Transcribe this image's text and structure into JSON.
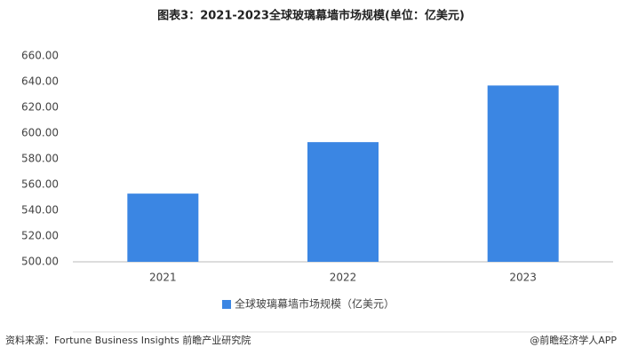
{
  "chart_data": {
    "type": "bar",
    "title": "图表3：2021-2023全球玻璃幕墙市场规模(单位：亿美元)",
    "categories": [
      "2021",
      "2022",
      "2023"
    ],
    "series": [
      {
        "name": "全球玻璃幕墙市场规模（亿美元）",
        "color": "#3b86e3",
        "values": [
          553,
          593,
          637
        ]
      }
    ],
    "ylim": [
      500,
      660
    ],
    "yticks": [
      {
        "value": 500,
        "label": "500.00"
      },
      {
        "value": 520,
        "label": "520.00"
      },
      {
        "value": 540,
        "label": "540.00"
      },
      {
        "value": 560,
        "label": "560.00"
      },
      {
        "value": 580,
        "label": "580.00"
      },
      {
        "value": 600,
        "label": "600.00"
      },
      {
        "value": 620,
        "label": "620.00"
      },
      {
        "value": 640,
        "label": "640.00"
      },
      {
        "value": 660,
        "label": "660.00"
      }
    ],
    "grid": false,
    "legend": "bottom",
    "source": "资料来源：Fortune Business Insights 前瞻产业研究院",
    "credit": "@前瞻经济学人APP"
  }
}
